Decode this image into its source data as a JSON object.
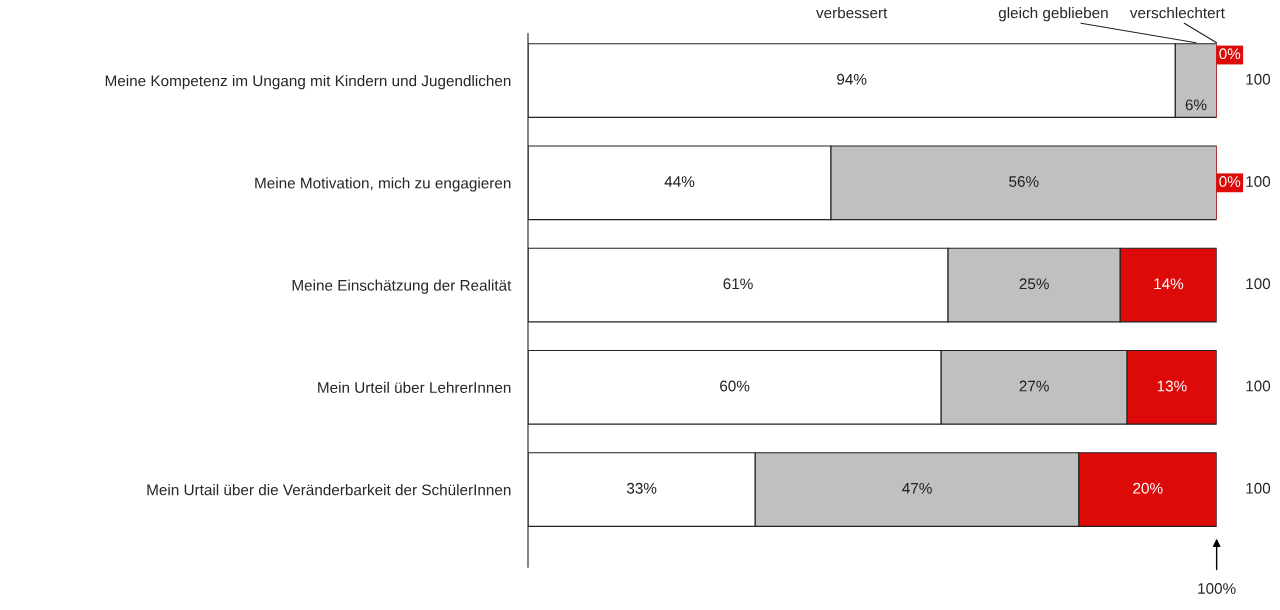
{
  "chart_data": {
    "type": "bar",
    "orientation": "horizontal",
    "stacked": true,
    "categories": [
      "Meine Kompetenz im Ungang mit Kindern und Jugendlichen",
      "Meine Motivation, mich zu engagieren",
      "Meine Einschätzung der Realität",
      "Mein Urteil über LehrerInnen",
      "Mein Urtail über die Veränderbarkeit der SchülerInnen"
    ],
    "series": [
      {
        "name": "verbessert",
        "color": "#ffffff",
        "values": [
          94,
          44,
          61,
          60,
          33
        ],
        "value_labels": [
          "94%",
          "44%",
          "61%",
          "60%",
          "33%"
        ]
      },
      {
        "name": "gleich geblieben",
        "color": "#c0c0c0",
        "values": [
          6,
          56,
          25,
          27,
          47
        ],
        "value_labels": [
          "6%",
          "56%",
          "25%",
          "27%",
          "47%"
        ]
      },
      {
        "name": "verschlechtert",
        "color": "#dd0a0a",
        "values": [
          0,
          0,
          14,
          13,
          20
        ],
        "value_labels": [
          "0%",
          "0%",
          "14%",
          "13%",
          "20%"
        ]
      }
    ],
    "totals": [
      "100",
      "100",
      "100",
      "100",
      "100"
    ],
    "tick_labels": "y",
    "annotations": [
      {
        "text": "100%",
        "x": 100
      }
    ]
  }
}
